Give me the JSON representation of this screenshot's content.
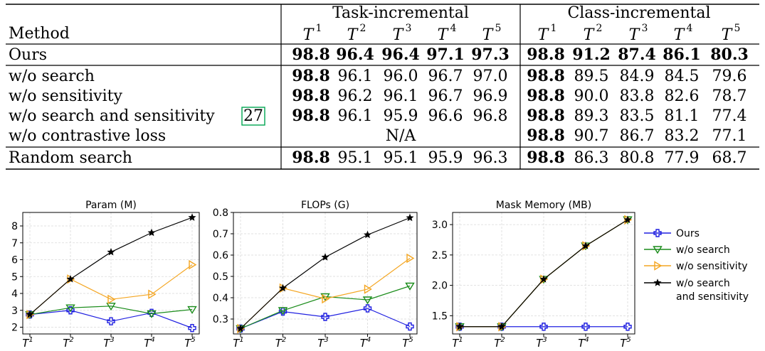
{
  "table": {
    "header": {
      "method": "Method",
      "group_task": "Task-incremental",
      "group_class": "Class-incremental",
      "task_labels": [
        "T",
        "T",
        "T",
        "T",
        "T"
      ],
      "task_sups": [
        "1",
        "2",
        "3",
        "4",
        "5"
      ]
    },
    "rows": [
      {
        "method": "Ours",
        "cite": "",
        "task": [
          "98.8",
          "96.4",
          "96.4",
          "97.1",
          "97.3"
        ],
        "task_bold": [
          true,
          true,
          true,
          true,
          true
        ],
        "cls": [
          "98.8",
          "91.2",
          "87.4",
          "86.1",
          "80.3"
        ],
        "cls_bold": [
          true,
          true,
          true,
          true,
          true
        ]
      },
      {
        "method": "w/o search",
        "cite": "",
        "task": [
          "98.8",
          "96.1",
          "96.0",
          "96.7",
          "97.0"
        ],
        "task_bold": [
          true,
          false,
          false,
          false,
          false
        ],
        "cls": [
          "98.8",
          "89.5",
          "84.9",
          "84.5",
          "79.6"
        ],
        "cls_bold": [
          true,
          false,
          false,
          false,
          false
        ]
      },
      {
        "method": "w/o sensitivity",
        "cite": "",
        "task": [
          "98.8",
          "96.2",
          "96.1",
          "96.7",
          "96.9"
        ],
        "task_bold": [
          true,
          false,
          false,
          false,
          false
        ],
        "cls": [
          "98.8",
          "90.0",
          "83.8",
          "82.6",
          "78.7"
        ],
        "cls_bold": [
          true,
          false,
          false,
          false,
          false
        ]
      },
      {
        "method": "w/o search and sensitivity",
        "cite": "27",
        "task": [
          "98.8",
          "96.1",
          "95.9",
          "96.6",
          "96.8"
        ],
        "task_bold": [
          true,
          false,
          false,
          false,
          false
        ],
        "cls": [
          "98.8",
          "89.3",
          "83.5",
          "81.1",
          "77.4"
        ],
        "cls_bold": [
          true,
          false,
          false,
          false,
          false
        ]
      },
      {
        "method": "w/o contrastive loss",
        "cite": "",
        "task_na": "N/A",
        "cls": [
          "98.8",
          "90.7",
          "86.7",
          "83.2",
          "77.1"
        ],
        "cls_bold": [
          true,
          false,
          false,
          false,
          false
        ]
      },
      {
        "method": "Random search",
        "cite": "",
        "task": [
          "98.8",
          "95.1",
          "95.1",
          "95.9",
          "96.3"
        ],
        "task_bold": [
          true,
          false,
          false,
          false,
          false
        ],
        "cls": [
          "98.8",
          "86.3",
          "80.8",
          "77.9",
          "68.7"
        ],
        "cls_bold": [
          true,
          false,
          false,
          false,
          false
        ]
      }
    ]
  },
  "chart_data": [
    {
      "type": "line",
      "title": "Param (M)",
      "x": [
        "T1",
        "T2",
        "T3",
        "T4",
        "T5"
      ],
      "ylim": [
        1.6,
        8.8
      ],
      "yticks": [
        2,
        3,
        4,
        5,
        6,
        7,
        8
      ],
      "grid": true,
      "series": [
        {
          "name": "Ours",
          "values": [
            2.75,
            3.0,
            2.35,
            2.85,
            1.95
          ]
        },
        {
          "name": "w/o search",
          "values": [
            2.75,
            3.15,
            3.25,
            2.8,
            3.05
          ]
        },
        {
          "name": "w/o sensitivity",
          "values": [
            2.75,
            4.85,
            3.65,
            3.95,
            5.7
          ]
        },
        {
          "name": "w/o search and sensitivity",
          "values": [
            2.75,
            4.85,
            6.45,
            7.6,
            8.5
          ]
        }
      ]
    },
    {
      "type": "line",
      "title": "FLOPs (G)",
      "x": [
        "T1",
        "T2",
        "T3",
        "T4",
        "T5"
      ],
      "ylim": [
        0.23,
        0.8
      ],
      "yticks": [
        0.3,
        0.4,
        0.5,
        0.6,
        0.7,
        0.8
      ],
      "grid": true,
      "series": [
        {
          "name": "Ours",
          "values": [
            0.255,
            0.335,
            0.31,
            0.35,
            0.265
          ]
        },
        {
          "name": "w/o search",
          "values": [
            0.255,
            0.34,
            0.405,
            0.39,
            0.455
          ]
        },
        {
          "name": "w/o sensitivity",
          "values": [
            0.255,
            0.445,
            0.395,
            0.44,
            0.585
          ]
        },
        {
          "name": "w/o search and sensitivity",
          "values": [
            0.255,
            0.445,
            0.59,
            0.695,
            0.775
          ]
        }
      ]
    },
    {
      "type": "line",
      "title": "Mask Memory (MB)",
      "x": [
        "T1",
        "T2",
        "T3",
        "T4",
        "T5"
      ],
      "ylim": [
        1.2,
        3.2
      ],
      "yticks": [
        1.5,
        2.0,
        2.5,
        3.0
      ],
      "ytick_labels": [
        "1.5",
        "2.0",
        "2.5",
        "3.0"
      ],
      "grid": true,
      "series": [
        {
          "name": "Ours",
          "values": [
            1.32,
            1.32,
            1.32,
            1.32,
            1.32
          ]
        },
        {
          "name": "w/o search",
          "values": [
            1.32,
            1.32,
            2.1,
            2.65,
            3.08
          ]
        },
        {
          "name": "w/o sensitivity",
          "values": [
            1.32,
            1.32,
            2.1,
            2.65,
            3.08
          ]
        },
        {
          "name": "w/o search and sensitivity",
          "values": [
            1.32,
            1.32,
            2.1,
            2.65,
            3.08
          ]
        }
      ]
    }
  ],
  "legend": {
    "items": [
      {
        "label": "Ours",
        "color": "#1f1fe0",
        "marker": "plus"
      },
      {
        "label": "w/o search",
        "color": "#1a8c1a",
        "marker": "tri-down"
      },
      {
        "label": "w/o sensitivity",
        "color": "#f4a622",
        "marker": "tri-right"
      },
      {
        "label": "w/o search",
        "label2": "and sensitivity",
        "color": "#000000",
        "marker": "star"
      }
    ]
  },
  "colors": {
    "ours": "#1f1fe0",
    "wo_search": "#1a8c1a",
    "wo_sensitivity": "#f4a622",
    "wo_search_sensitivity": "#000000",
    "citation_box": "#00a651"
  }
}
